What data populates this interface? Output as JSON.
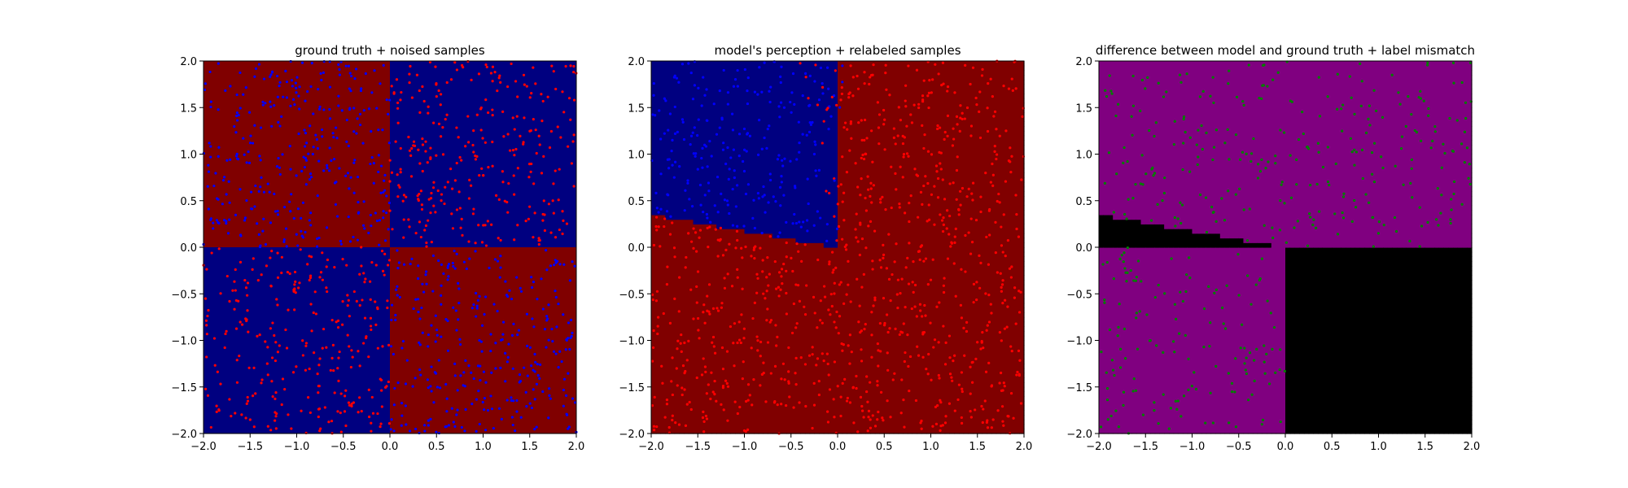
{
  "chart_data": [
    {
      "type": "heatmap",
      "title": "ground truth + noised samples",
      "xlim": [
        -2.0,
        2.0
      ],
      "ylim": [
        -2.0,
        2.0
      ],
      "xticks": [
        "−2.0",
        "−1.5",
        "−1.0",
        "−0.5",
        "0.0",
        "0.5",
        "1.0",
        "1.5",
        "2.0"
      ],
      "yticks": [
        "−2.0",
        "−1.5",
        "−1.0",
        "−0.5",
        "0.0",
        "0.5",
        "1.0",
        "1.5",
        "2.0"
      ],
      "grid": false,
      "regions": [
        {
          "x": [
            -2,
            0
          ],
          "y": [
            0,
            2
          ],
          "color": "#800000"
        },
        {
          "x": [
            0,
            2
          ],
          "y": [
            0,
            2
          ],
          "color": "#000080"
        },
        {
          "x": [
            -2,
            0
          ],
          "y": [
            -2,
            0
          ],
          "color": "#000080"
        },
        {
          "x": [
            0,
            2
          ],
          "y": [
            -2,
            0
          ],
          "color": "#800000"
        }
      ],
      "points": {
        "rule": "opposite_of_quadrant",
        "colors": [
          "#ff0000",
          "#0000ff"
        ],
        "count": 1200
      }
    },
    {
      "type": "heatmap",
      "title": "model's perception + relabeled samples",
      "xlim": [
        -2.0,
        2.0
      ],
      "ylim": [
        -2.0,
        2.0
      ],
      "xticks": [
        "−2.0",
        "−1.5",
        "−1.0",
        "−0.5",
        "0.0",
        "0.5",
        "1.0",
        "1.5",
        "2.0"
      ],
      "yticks": [
        "−2.0",
        "−1.5",
        "−1.0",
        "−0.5",
        "0.0",
        "0.5",
        "1.0",
        "1.5",
        "2.0"
      ],
      "grid": false,
      "model_field": {
        "red_sector_angles_deg": [
          [
            45,
            90
          ],
          [
            -90,
            45
          ],
          [
            170,
            360
          ]
        ],
        "colors": {
          "red": "#800000",
          "blue": "#000080"
        }
      },
      "points": {
        "rule": "model_label",
        "colors": [
          "#ff0000",
          "#0000ff"
        ],
        "count": 1200
      }
    },
    {
      "type": "heatmap",
      "title": "difference between model and ground truth + label mismatch",
      "xlim": [
        -2.0,
        2.0
      ],
      "ylim": [
        -2.0,
        2.0
      ],
      "xticks": [
        "−2.0",
        "−1.5",
        "−1.0",
        "−0.5",
        "0.0",
        "0.5",
        "1.0",
        "1.5",
        "2.0"
      ],
      "yticks": [
        "−2.0",
        "−1.5",
        "−1.0",
        "−0.5",
        "0.0",
        "0.5",
        "1.0",
        "1.5",
        "2.0"
      ],
      "grid": false,
      "colors": {
        "match": "#000000",
        "mismatch": "#800080"
      },
      "points": {
        "rule": "label_mismatch",
        "color": "#008000",
        "count": 600
      }
    }
  ]
}
